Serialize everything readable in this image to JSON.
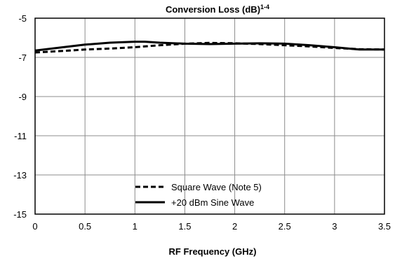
{
  "chart_data": {
    "type": "line",
    "title": "Conversion Loss (dB)",
    "title_superscript": "1-4",
    "xlabel": "RF Frequency (GHz)",
    "ylabel": "",
    "xlim": [
      0,
      3.5
    ],
    "ylim": [
      -15,
      -5
    ],
    "x_ticks": [
      "0",
      "0.5",
      "1",
      "1.5",
      "2",
      "2.5",
      "3",
      "3.5"
    ],
    "y_ticks": [
      "-5",
      "-7",
      "-9",
      "-11",
      "-13",
      "-15"
    ],
    "grid": true,
    "legend_position": "bottom-center",
    "series": [
      {
        "name": "Square Wave (Note 5)",
        "style": "dashed",
        "color": "#000000",
        "x": [
          0,
          0.25,
          0.5,
          0.75,
          1.0,
          1.25,
          1.5,
          1.75,
          2.0,
          2.25,
          2.5,
          2.75,
          3.0,
          3.25,
          3.5
        ],
        "y": [
          -6.75,
          -6.68,
          -6.6,
          -6.55,
          -6.48,
          -6.38,
          -6.3,
          -6.26,
          -6.28,
          -6.32,
          -6.38,
          -6.44,
          -6.52,
          -6.58,
          -6.6
        ]
      },
      {
        "name": "+20 dBm Sine Wave",
        "style": "solid",
        "color": "#000000",
        "x": [
          0,
          0.25,
          0.5,
          0.75,
          1.0,
          1.1,
          1.25,
          1.5,
          1.75,
          2.0,
          2.25,
          2.5,
          2.75,
          3.0,
          3.25,
          3.5
        ],
        "y": [
          -6.65,
          -6.5,
          -6.35,
          -6.25,
          -6.2,
          -6.2,
          -6.25,
          -6.3,
          -6.32,
          -6.3,
          -6.28,
          -6.3,
          -6.38,
          -6.48,
          -6.6,
          -6.6
        ]
      }
    ]
  }
}
